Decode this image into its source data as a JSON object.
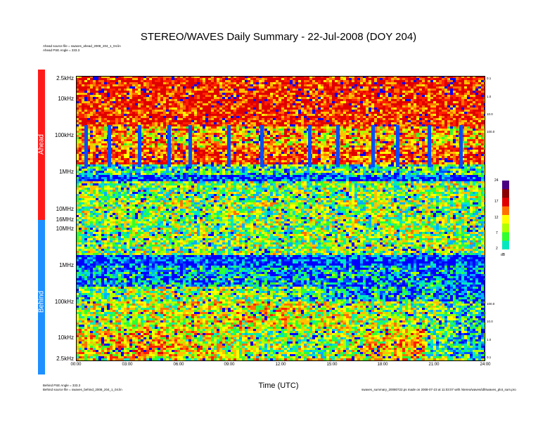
{
  "chart_data": {
    "type": "heatmap",
    "title": "STEREO/WAVES Daily Summary - 22-Jul-2008 (DOY 204)",
    "xlabel": "Time (UTC)",
    "x_ticks": [
      "00:00",
      "03:00",
      "06:00",
      "09:00",
      "12:00",
      "15:00",
      "18:00",
      "21:00",
      "24:00"
    ],
    "xlim": [
      "00:00",
      "24:00"
    ],
    "panels": [
      {
        "name": "Ahead",
        "color": "#ff1a1a",
        "y_ticks": [
          "2.5kHz",
          "10kHz",
          "100kHz",
          "1MHz",
          "10MHz",
          "16MHz"
        ],
        "right_ticks": [
          "0.1",
          "1.0",
          "10.0",
          "100.0"
        ],
        "source_file": "Ahead source file = swaves_ahead_2008_204_1_04.lin",
        "pse_angle": "Ahead PSE Angle = 333.3"
      },
      {
        "name": "Behind",
        "color": "#1e90ff",
        "y_ticks": [
          "10MHz",
          "1MHz",
          "100kHz",
          "10kHz",
          "2.5kHz"
        ],
        "right_ticks": [
          "100.0",
          "10.0",
          "1.0",
          "0.1"
        ],
        "source_file": "Behind source file = swaves_behind_2008_204_1_04.lin",
        "pse_angle": "Behind PSE Angle = 333.3"
      }
    ],
    "colorbar": {
      "ticks": [
        "24",
        "17",
        "12",
        "7",
        "2"
      ],
      "unit": "dB",
      "range": [
        2,
        24
      ]
    },
    "footer_note": "swaves_summary_20080722.ps made on 2008-07-23 at 11:03:07 with /stereo/waves/idl/swaves_plot_sum.pro"
  },
  "palette": [
    "#0000ff",
    "#0050ff",
    "#00b0ff",
    "#00e8c0",
    "#30ff30",
    "#b0ff00",
    "#ffff00",
    "#ffc000",
    "#ff7000",
    "#ff2000",
    "#e00000"
  ]
}
